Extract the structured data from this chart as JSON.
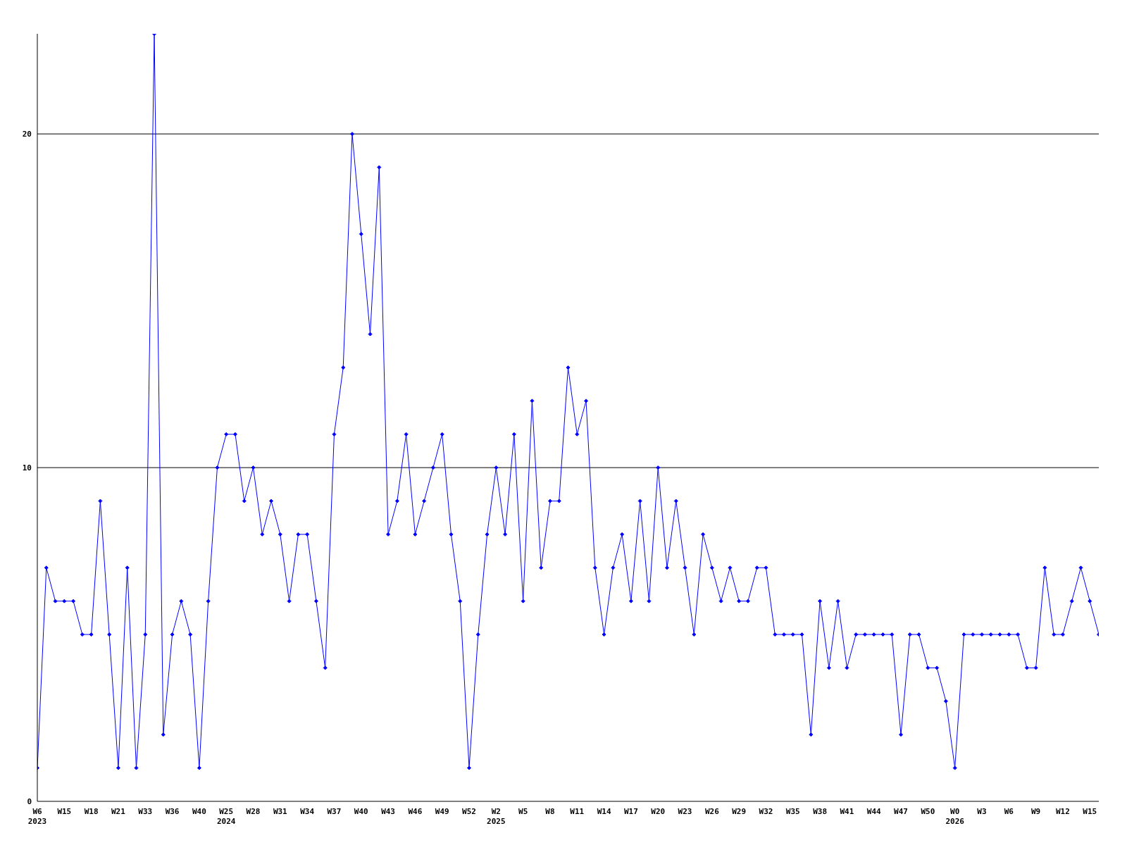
{
  "chart_data": {
    "type": "line",
    "categories": [
      "W6\n2023",
      null,
      null,
      "W15",
      null,
      null,
      "W18",
      null,
      null,
      "W21",
      null,
      null,
      "W33",
      null,
      null,
      "W36",
      null,
      null,
      "W40",
      null,
      null,
      "W25\n2024",
      null,
      null,
      "W28",
      null,
      null,
      "W31",
      null,
      null,
      "W34",
      null,
      null,
      "W37",
      null,
      null,
      "W40",
      null,
      null,
      "W43",
      null,
      null,
      "W46",
      null,
      null,
      "W49",
      null,
      null,
      "W52",
      null,
      null,
      "W2\n2025",
      null,
      null,
      "W5",
      null,
      null,
      "W8",
      null,
      null,
      "W11",
      null,
      null,
      "W14",
      null,
      null,
      "W17",
      null,
      null,
      "W20",
      null,
      null,
      "W23",
      null,
      null,
      "W26",
      null,
      null,
      "W29",
      null,
      null,
      "W32",
      null,
      null,
      "W35",
      null,
      null,
      "W38",
      null,
      null,
      "W41",
      null,
      null,
      "W44",
      null,
      null,
      "W47",
      null,
      null,
      "W50",
      null,
      null,
      "W0\n2026",
      null,
      null,
      "W3",
      null,
      null,
      "W6",
      null,
      null,
      "W9",
      null,
      null,
      "W12",
      null,
      null,
      "W15",
      null
    ],
    "series": [
      {
        "color": "#0000ff",
        "values": [
          1,
          7,
          6,
          6,
          6,
          5,
          5,
          9,
          5,
          1,
          7,
          1,
          5,
          23,
          2,
          5,
          6,
          5,
          1,
          6,
          10,
          11,
          11,
          9,
          10,
          8,
          9,
          8,
          6,
          8,
          8,
          6,
          4,
          11,
          13,
          20,
          17,
          14,
          19,
          8,
          9,
          11,
          8,
          9,
          10,
          11,
          8,
          6,
          1,
          5,
          8,
          10,
          8,
          11,
          6,
          12,
          7,
          9,
          9,
          13,
          11,
          12,
          7,
          5,
          7,
          8,
          6,
          9,
          6,
          10,
          7,
          9,
          7,
          5,
          8,
          7,
          6,
          7,
          6,
          6,
          7,
          7,
          5,
          5,
          5,
          5,
          2,
          6,
          4,
          6,
          4,
          5,
          5,
          5,
          5,
          5,
          2,
          5,
          5,
          4,
          4,
          3,
          1,
          5,
          5,
          5,
          5,
          5,
          5,
          5,
          4,
          4,
          7,
          5,
          5,
          6,
          7,
          6,
          5
        ]
      }
    ],
    "ylim": [
      0,
      23
    ],
    "yticks": [
      0,
      10,
      20
    ],
    "grid": "y",
    "marker": "diamond",
    "line_style": "solid"
  }
}
